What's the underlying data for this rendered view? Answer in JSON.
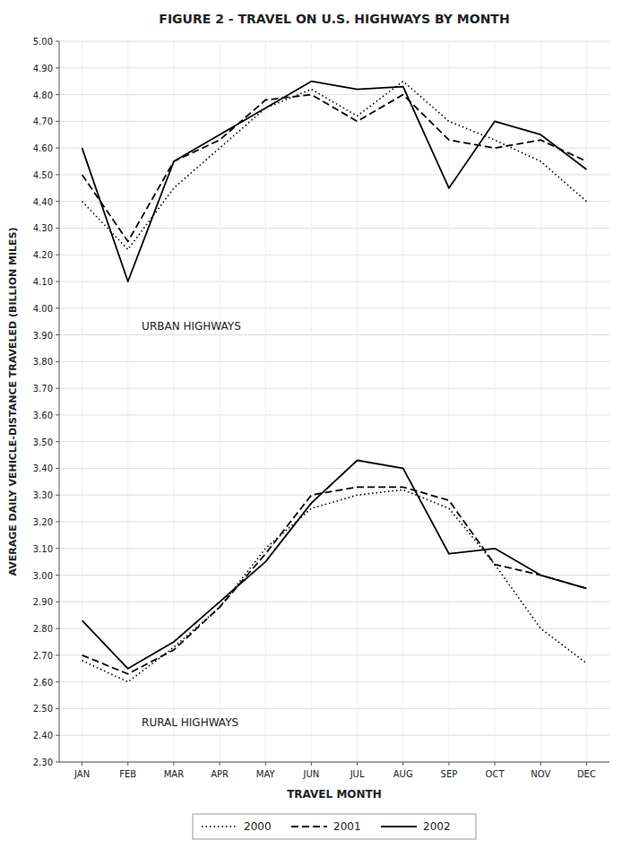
{
  "chart_data": {
    "type": "line",
    "title": "FIGURE 2 - TRAVEL ON U.S. HIGHWAYS BY MONTH",
    "x_label": "TRAVEL MONTH",
    "y_label": "AVERAGE DAILY VEHICLE-DISTANCE TRAVELED (BILLION MILES)",
    "categories": [
      "JAN",
      "FEB",
      "MAR",
      "APR",
      "MAY",
      "JUN",
      "JUL",
      "AUG",
      "SEP",
      "OCT",
      "NOV",
      "DEC"
    ],
    "series": [
      {
        "name": "2000",
        "color": "#000000",
        "line_style": "dotted",
        "values": [
          4.4,
          4.22,
          4.45,
          4.6,
          4.75,
          4.82,
          4.72,
          4.85,
          4.7,
          4.63,
          4.55,
          4.4
        ]
      },
      {
        "name": "2001",
        "color": "#000000",
        "line_style": "dashed",
        "values": [
          4.5,
          4.25,
          4.55,
          4.63,
          4.78,
          4.8,
          4.7,
          4.8,
          4.63,
          4.6,
          4.63,
          4.55
        ]
      },
      {
        "name": "2002",
        "color": "#000000",
        "line_style": "solid",
        "values": [
          4.6,
          4.1,
          4.55,
          4.65,
          4.75,
          4.85,
          4.82,
          4.83,
          4.45,
          4.7,
          4.65,
          4.52
        ]
      },
      {
        "name": "2000",
        "color": "#000000",
        "line_style": "dotted",
        "values": [
          2.68,
          2.6,
          2.73,
          2.88,
          3.1,
          3.25,
          3.3,
          3.32,
          3.25,
          3.04,
          2.8,
          2.67
        ]
      },
      {
        "name": "2001",
        "color": "#000000",
        "line_style": "dashed",
        "values": [
          2.7,
          2.63,
          2.72,
          2.88,
          3.08,
          3.3,
          3.33,
          3.33,
          3.28,
          3.04,
          3.0,
          2.95
        ]
      },
      {
        "name": "2002",
        "color": "#000000",
        "line_style": "solid",
        "values": [
          2.83,
          2.65,
          2.75,
          2.9,
          3.05,
          3.27,
          3.43,
          3.4,
          3.08,
          3.1,
          3.0,
          2.95
        ]
      }
    ],
    "annotations": [
      "URBAN HIGHWAYS",
      "RURAL HIGHWAYS"
    ],
    "ylim": [
      2.3,
      5.0
    ],
    "yticks": [
      {
        "value": 2.3,
        "label": "2.30"
      },
      {
        "value": 2.4,
        "label": "2.40"
      },
      {
        "value": 2.5,
        "label": "2.50"
      },
      {
        "value": 2.6,
        "label": "2.60"
      },
      {
        "value": 2.7,
        "label": "2.70"
      },
      {
        "value": 2.8,
        "label": "2.80"
      },
      {
        "value": 2.9,
        "label": "2.90"
      },
      {
        "value": 3.0,
        "label": "3.00"
      },
      {
        "value": 3.1,
        "label": "3.10"
      },
      {
        "value": 3.2,
        "label": "3.20"
      },
      {
        "value": 3.3,
        "label": "3.30"
      },
      {
        "value": 3.4,
        "label": "3.40"
      },
      {
        "value": 3.5,
        "label": "3.50"
      },
      {
        "value": 3.6,
        "label": "3.60"
      },
      {
        "value": 3.7,
        "label": "3.70"
      },
      {
        "value": 3.8,
        "label": "3.80"
      },
      {
        "value": 3.9,
        "label": "3.90"
      },
      {
        "value": 4.0,
        "label": "4.00"
      },
      {
        "value": 4.1,
        "label": "4.10"
      },
      {
        "value": 4.2,
        "label": "4.20"
      },
      {
        "value": 4.3,
        "label": "4.30"
      },
      {
        "value": 4.4,
        "label": "4.40"
      },
      {
        "value": 4.5,
        "label": "4.50"
      },
      {
        "value": 4.6,
        "label": "4.60"
      },
      {
        "value": 4.7,
        "label": "4.70"
      },
      {
        "value": 4.8,
        "label": "4.80"
      },
      {
        "value": 4.9,
        "label": "4.90"
      },
      {
        "value": 5.0,
        "label": "5.00"
      }
    ],
    "grid": true,
    "legend": "bottom"
  }
}
